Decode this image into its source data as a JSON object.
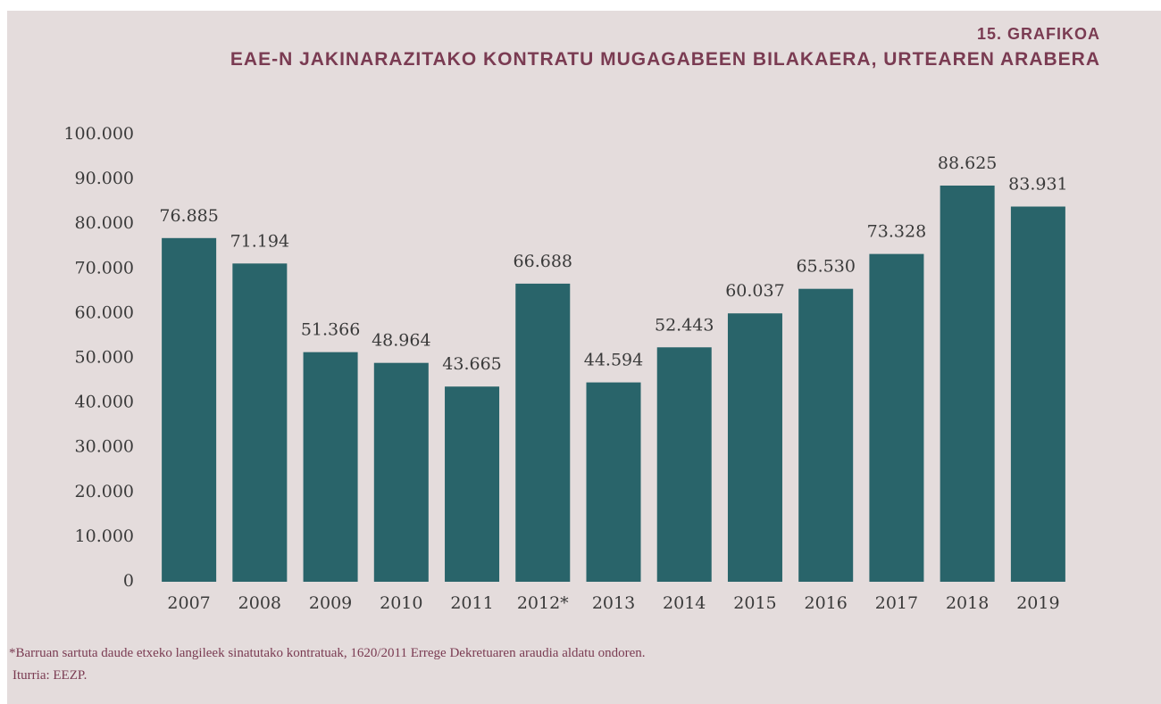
{
  "chart_data": {
    "type": "bar",
    "subtitle": "15. GRAFIKOA",
    "title": "EAE-N JAKINARAZITAKO KONTRATU MUGAGABEEN BILAKAERA, URTEAREN ARABERA",
    "categories": [
      "2007",
      "2008",
      "2009",
      "2010",
      "2011",
      "2012*",
      "2013",
      "2014",
      "2015",
      "2016",
      "2017",
      "2018",
      "2019"
    ],
    "values": [
      76885,
      71194,
      51366,
      48964,
      43665,
      66688,
      44594,
      52443,
      60037,
      65530,
      73328,
      88625,
      83931
    ],
    "value_labels": [
      "76.885",
      "71.194",
      "51.366",
      "48.964",
      "43.665",
      "66.688",
      "44.594",
      "52.443",
      "60.037",
      "65.530",
      "73.328",
      "88.625",
      "83.931"
    ],
    "color": "#29646a",
    "ylim": [
      0,
      100000
    ],
    "yticks": [
      0,
      {
        "value": 10000,
        "label": "10.000"
      },
      {
        "value": 20000,
        "label": "20.000"
      },
      {
        "value": 30000,
        "label": "30.000"
      },
      {
        "value": 40000,
        "label": "40.000"
      },
      {
        "value": 50000,
        "label": "50.000"
      },
      {
        "value": 60000,
        "label": "60.000"
      },
      {
        "value": 70000,
        "label": "70.000"
      },
      {
        "value": 80000,
        "label": "80.000"
      },
      {
        "value": 90000,
        "label": "90.000"
      },
      {
        "value": 100000,
        "label": "100.000"
      }
    ],
    "grid": false,
    "note": "*Barruan sartuta daude etxeko langileek sinatutako kontratuak, 1620/2011 Errege Dekretuaren araudia aldatu ondoren.",
    "source": "Iturria: EEZP."
  }
}
